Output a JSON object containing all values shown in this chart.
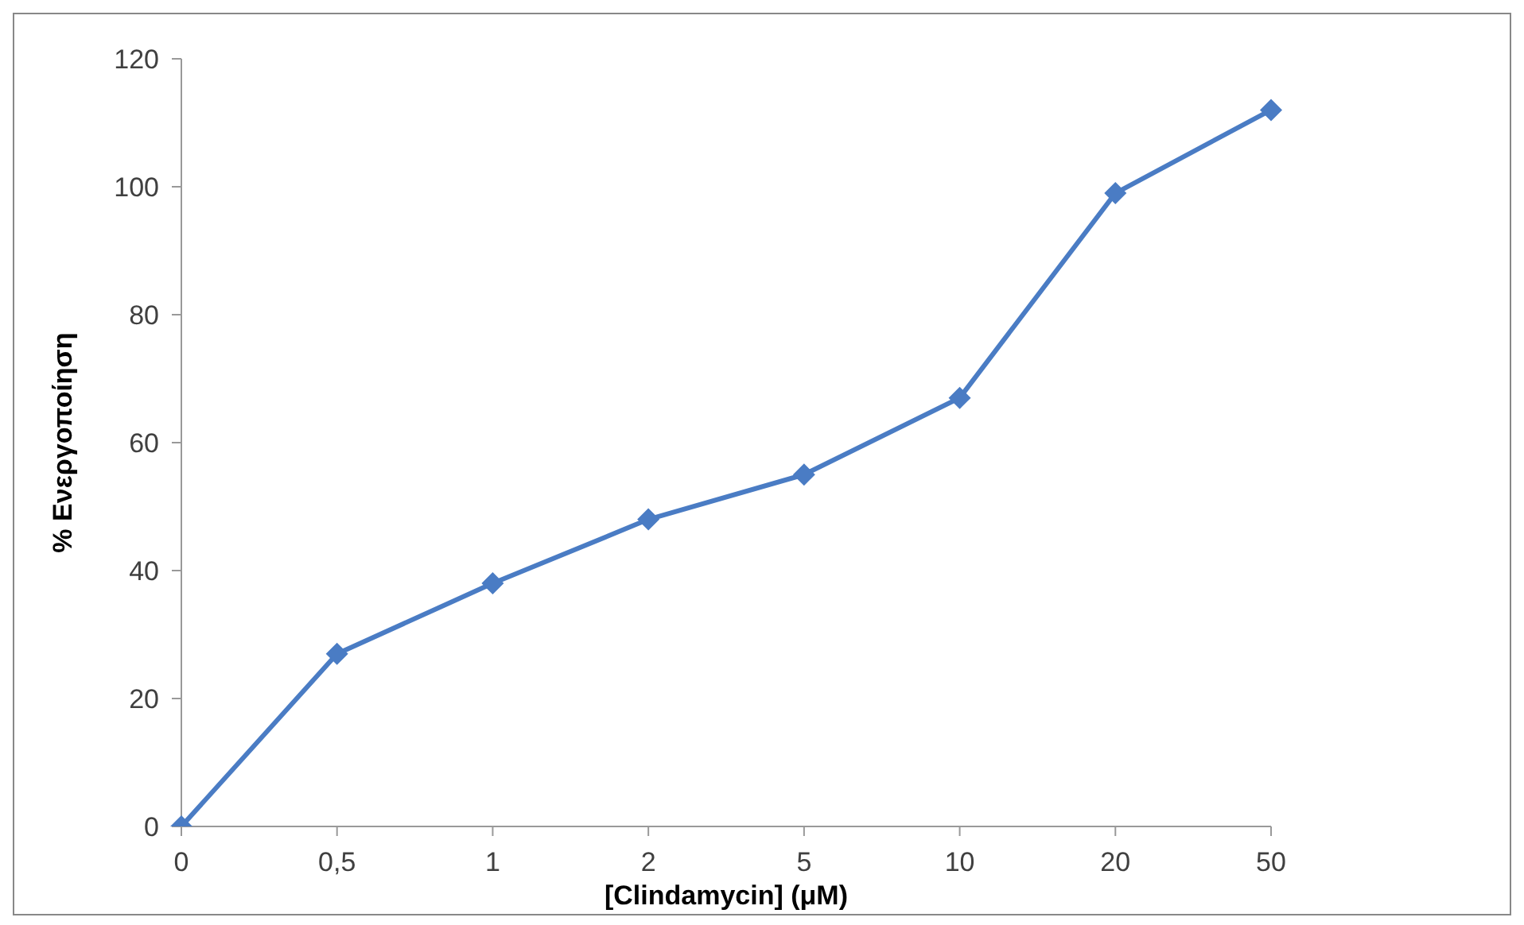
{
  "chart_data": {
    "type": "line",
    "xlabel": "[Clindamycin] (μM)",
    "ylabel": "% Ενεργοποίηση",
    "categories": [
      "0",
      "0,5",
      "1",
      "2",
      "5",
      "10",
      "20",
      "50"
    ],
    "values": [
      0,
      27,
      38,
      48,
      55,
      67,
      99,
      112
    ],
    "color": "#4a7cc4",
    "marker": "diamond",
    "ylim": [
      0,
      120
    ],
    "yticks": [
      0,
      20,
      40,
      60,
      80,
      100,
      120
    ],
    "grid": false,
    "legend": false
  }
}
